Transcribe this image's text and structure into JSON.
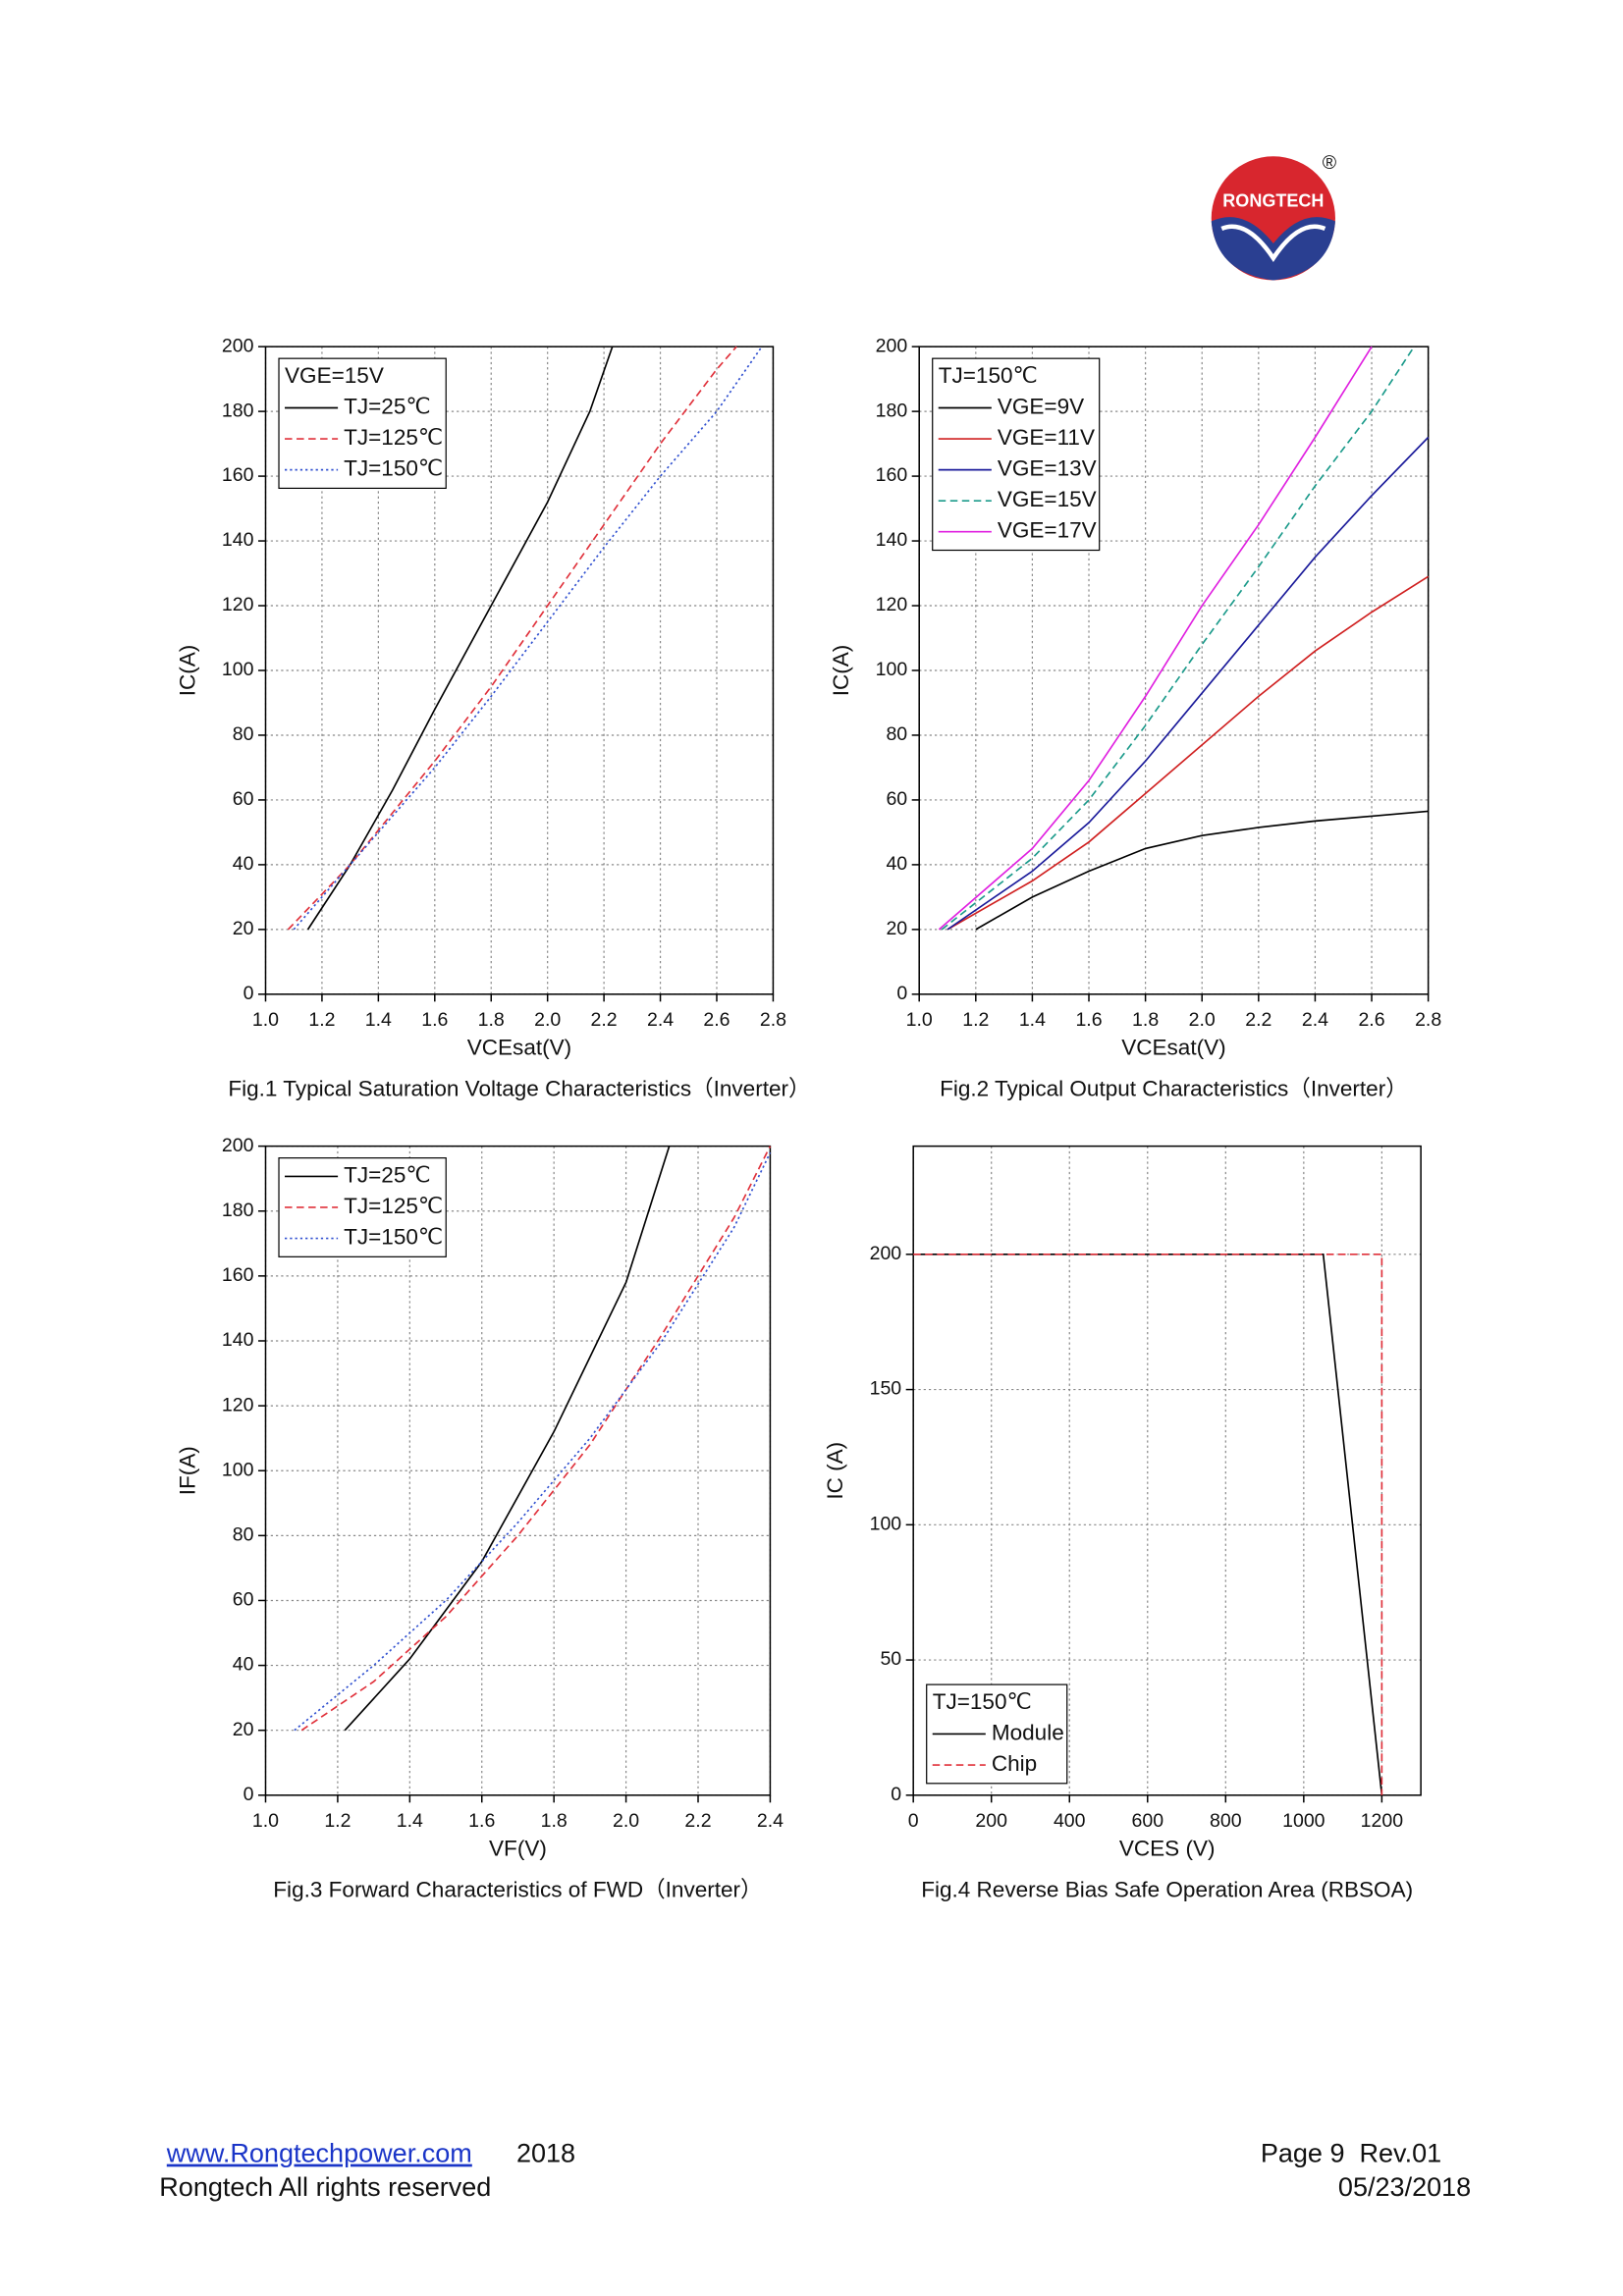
{
  "logo": {
    "text": "RONGTECH",
    "mark": "®"
  },
  "footer": {
    "link": "www.Rongtechpower.com",
    "year": "2018",
    "rights": "Rongtech All rights reserved",
    "page": "Page 9  Rev.01",
    "date": "05/23/2018"
  },
  "chart_data": [
    {
      "type": "line",
      "title": "Fig.1 Typical Saturation Voltage Characteristics（Inverter）",
      "xlabel": "VCEsat(V)",
      "ylabel": "IC(A)",
      "xlim": [
        1,
        2.8
      ],
      "ylim": [
        0,
        200
      ],
      "xticks": [
        {
          "value": 1,
          "label": "1.0"
        },
        1.2,
        1.4,
        1.6,
        1.8,
        {
          "value": 2,
          "label": "2.0"
        },
        2.2,
        2.4,
        2.6,
        2.8
      ],
      "yticks": [
        0,
        20,
        40,
        60,
        80,
        100,
        120,
        140,
        160,
        180,
        200
      ],
      "grid": true,
      "legend": "upper left",
      "legend_title": "VGE=15V",
      "series": [
        {
          "name": "TJ=25℃",
          "color": "#000000",
          "linestyle": "solid",
          "x": [
            1.15,
            1.3,
            1.45,
            1.6,
            1.8,
            2.0,
            2.15,
            2.23
          ],
          "values": [
            20,
            40,
            63,
            88,
            120,
            152,
            180,
            200
          ]
        },
        {
          "name": "TJ=125℃",
          "color": "#e0303a",
          "linestyle": "dashed",
          "x": [
            1.08,
            1.3,
            1.6,
            1.8,
            2.0,
            2.2,
            2.4,
            2.6,
            2.67
          ],
          "values": [
            20,
            40,
            72,
            95,
            120,
            145,
            170,
            193,
            200
          ]
        },
        {
          "name": "TJ=150℃",
          "color": "#3050d0",
          "linestyle": "dotted",
          "x": [
            1.1,
            1.3,
            1.6,
            1.8,
            2.0,
            2.2,
            2.4,
            2.6,
            2.76
          ],
          "values": [
            20,
            40,
            70,
            92,
            115,
            138,
            160,
            180,
            200
          ]
        }
      ]
    },
    {
      "type": "line",
      "title": "Fig.2 Typical Output Characteristics（Inverter）",
      "xlabel": "VCEsat(V)",
      "ylabel": "IC(A)",
      "xlim": [
        1,
        2.8
      ],
      "ylim": [
        0,
        200
      ],
      "xticks": [
        {
          "value": 1,
          "label": "1.0"
        },
        1.2,
        1.4,
        1.6,
        1.8,
        {
          "value": 2,
          "label": "2.0"
        },
        2.2,
        2.4,
        2.6,
        2.8
      ],
      "yticks": [
        0,
        20,
        40,
        60,
        80,
        100,
        120,
        140,
        160,
        180,
        200
      ],
      "grid": true,
      "legend": "upper left",
      "legend_title": "TJ=150℃",
      "series": [
        {
          "name": "VGE=9V",
          "color": "#000000",
          "linestyle": "solid",
          "x": [
            1.2,
            1.4,
            1.6,
            1.8,
            2.0,
            2.2,
            2.4,
            2.6,
            2.8
          ],
          "values": [
            20,
            30,
            38,
            45,
            49,
            51.5,
            53.5,
            55,
            56.5
          ]
        },
        {
          "name": "VGE=11V",
          "color": "#d02020",
          "linestyle": "solid",
          "x": [
            1.1,
            1.4,
            1.6,
            1.8,
            2.0,
            2.2,
            2.4,
            2.6,
            2.8
          ],
          "values": [
            20,
            35,
            47,
            62,
            77,
            92,
            106,
            118,
            129
          ]
        },
        {
          "name": "VGE=13V",
          "color": "#1a1a9a",
          "linestyle": "solid",
          "x": [
            1.1,
            1.4,
            1.6,
            1.8,
            2.0,
            2.2,
            2.4,
            2.6,
            2.8
          ],
          "values": [
            20,
            38,
            53,
            72,
            93,
            114,
            135,
            154,
            172
          ]
        },
        {
          "name": "VGE=15V",
          "color": "#1a9a8a",
          "linestyle": "dashed",
          "x": [
            1.08,
            1.4,
            1.6,
            1.8,
            2.0,
            2.2,
            2.4,
            2.6,
            2.75
          ],
          "values": [
            20,
            42,
            60,
            83,
            108,
            132,
            157,
            180,
            200
          ]
        },
        {
          "name": "VGE=17V",
          "color": "#e020e0",
          "linestyle": "solid",
          "x": [
            1.07,
            1.4,
            1.6,
            1.8,
            2.0,
            2.2,
            2.4,
            2.6
          ],
          "values": [
            20,
            45,
            66,
            92,
            120,
            145,
            172,
            200
          ]
        }
      ]
    },
    {
      "type": "line",
      "title": "Fig.3 Forward Characteristics of FWD（Inverter）",
      "xlabel": "VF(V)",
      "ylabel": "IF(A)",
      "xlim": [
        1,
        2.4
      ],
      "ylim": [
        0,
        200
      ],
      "xticks": [
        {
          "value": 1,
          "label": "1.0"
        },
        1.2,
        1.4,
        1.6,
        1.8,
        {
          "value": 2,
          "label": "2.0"
        },
        2.2,
        2.4
      ],
      "yticks": [
        0,
        20,
        40,
        60,
        80,
        100,
        120,
        140,
        160,
        180,
        200
      ],
      "grid": true,
      "legend": "upper left",
      "series": [
        {
          "name": "TJ=25℃",
          "color": "#000000",
          "linestyle": "solid",
          "x": [
            1.22,
            1.4,
            1.6,
            1.8,
            2.0,
            2.12
          ],
          "values": [
            20,
            42,
            72,
            112,
            158,
            200
          ]
        },
        {
          "name": "TJ=125℃",
          "color": "#e0303a",
          "linestyle": "dashed",
          "x": [
            1.1,
            1.3,
            1.5,
            1.7,
            1.9,
            2.1,
            2.3,
            2.4
          ],
          "values": [
            20,
            35,
            55,
            80,
            108,
            142,
            178,
            200
          ]
        },
        {
          "name": "TJ=150℃",
          "color": "#3050d0",
          "linestyle": "dotted",
          "x": [
            1.08,
            1.3,
            1.5,
            1.7,
            1.9,
            2.1,
            2.3,
            2.4
          ],
          "values": [
            20,
            40,
            60,
            84,
            110,
            140,
            175,
            198
          ]
        }
      ]
    },
    {
      "type": "line",
      "title": "Fig.4 Reverse Bias Safe Operation Area (RBSOA)",
      "xlabel": "VCES (V)",
      "ylabel": "IC (A)",
      "xlim": [
        0,
        1300
      ],
      "ylim": [
        0,
        240
      ],
      "xticks": [
        0,
        200,
        400,
        600,
        800,
        1000,
        1200
      ],
      "yticks": [
        0,
        50,
        100,
        150,
        200
      ],
      "grid": true,
      "legend": "lower left",
      "legend_title": "TJ=150℃",
      "series": [
        {
          "name": "Module",
          "color": "#000000",
          "linestyle": "solid",
          "x": [
            0,
            1050,
            1200
          ],
          "values": [
            200,
            200,
            0
          ]
        },
        {
          "name": "Chip",
          "color": "#e0303a",
          "linestyle": "dashed",
          "x": [
            0,
            1200,
            1200
          ],
          "values": [
            200,
            200,
            0
          ]
        }
      ]
    }
  ]
}
